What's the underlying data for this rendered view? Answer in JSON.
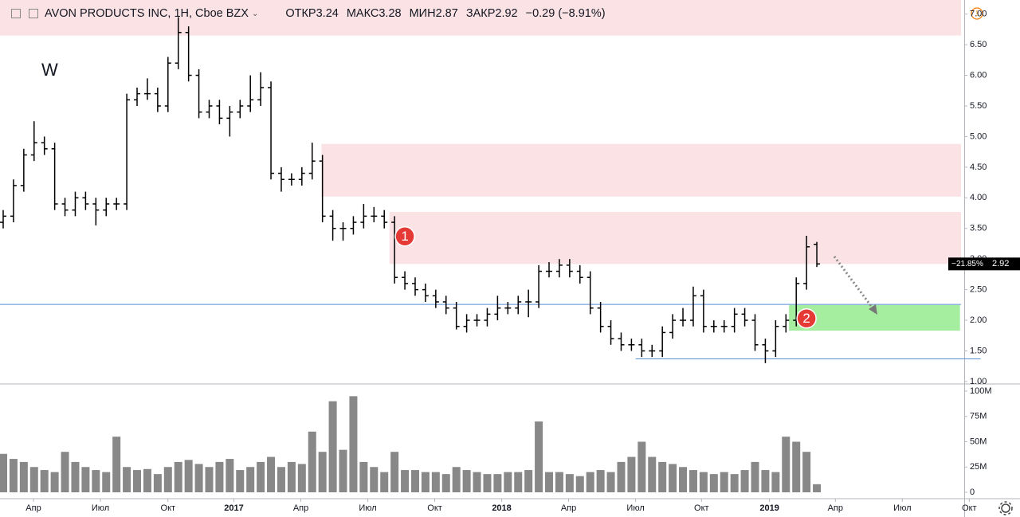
{
  "chart_data": {
    "type": "ohlc",
    "title": "AVON PRODUCTS INC, 1H, Cboe BZX",
    "header": {
      "open_label": "ОТКР",
      "open": 3.24,
      "high_label": "МАКС",
      "high": 3.28,
      "low_label": "МИН",
      "low": 2.87,
      "close_label": "ЗАКР",
      "close": 2.92,
      "change": "−0.29",
      "change_pct": "(−8.91%)"
    },
    "annotation": "W",
    "xlim": [
      0,
      93
    ],
    "xticks": [
      {
        "value": 2.94,
        "label": "Апр"
      },
      {
        "value": 9.44,
        "label": "Июл"
      },
      {
        "value": 16.0,
        "label": "Окт"
      },
      {
        "value": 22.4,
        "label": "2017"
      },
      {
        "value": 28.9,
        "label": "Апр"
      },
      {
        "value": 35.4,
        "label": "Июл"
      },
      {
        "value": 41.9,
        "label": "Окт"
      },
      {
        "value": 48.4,
        "label": "2018"
      },
      {
        "value": 54.9,
        "label": "Апр"
      },
      {
        "value": 61.4,
        "label": "Июл"
      },
      {
        "value": 67.8,
        "label": "Окт"
      },
      {
        "value": 74.4,
        "label": "2019"
      },
      {
        "value": 80.8,
        "label": "Апр"
      },
      {
        "value": 87.3,
        "label": "Июл"
      },
      {
        "value": 93.8,
        "label": "Окт"
      }
    ],
    "ylim": [
      0.96,
      7.23
    ],
    "yticks": [
      {
        "value": 1,
        "label": "1.00"
      },
      {
        "value": 1.5,
        "label": "1.50"
      },
      {
        "value": 2,
        "label": "2.00"
      },
      {
        "value": 2.5,
        "label": "2.50"
      },
      {
        "value": 3,
        "label": "3.00"
      },
      {
        "value": 3.5,
        "label": "3.50"
      },
      {
        "value": 4,
        "label": "4.00"
      },
      {
        "value": 4.5,
        "label": "4.50"
      },
      {
        "value": 5,
        "label": "5.00"
      },
      {
        "value": 5.5,
        "label": "5.50"
      },
      {
        "value": 6,
        "label": "6.00"
      },
      {
        "value": 6.5,
        "label": "6.50"
      },
      {
        "value": 7,
        "label": "7.00"
      }
    ],
    "color": "#000000",
    "open": [
      3.6,
      3.7,
      4.2,
      4.7,
      4.9,
      4.8,
      3.9,
      3.8,
      4.0,
      3.9,
      3.8,
      3.9,
      3.9,
      5.6,
      5.7,
      5.7,
      5.5,
      6.2,
      6.7,
      6.0,
      5.4,
      5.5,
      5.3,
      5.4,
      5.5,
      5.6,
      5.8,
      4.4,
      4.3,
      4.3,
      4.4,
      4.6,
      3.7,
      3.5,
      3.5,
      3.6,
      3.7,
      3.7,
      3.6,
      2.7,
      2.6,
      2.5,
      2.4,
      2.3,
      2.2,
      1.9,
      2.0,
      2.0,
      2.1,
      2.2,
      2.2,
      2.3,
      2.3,
      2.8,
      2.8,
      2.9,
      2.8,
      2.7,
      2.2,
      1.9,
      1.7,
      1.6,
      1.6,
      1.5,
      1.5,
      1.8,
      2.0,
      2.0,
      2.4,
      1.9,
      1.9,
      1.9,
      2.1,
      2.0,
      1.6,
      1.5,
      1.9,
      2.0,
      2.6,
      3.24
    ],
    "high": [
      3.8,
      4.3,
      4.8,
      5.25,
      5.0,
      4.9,
      4.0,
      4.1,
      4.1,
      4.0,
      4.0,
      4.0,
      5.7,
      5.8,
      5.95,
      5.8,
      6.3,
      6.95,
      6.8,
      6.1,
      5.6,
      5.6,
      5.5,
      5.6,
      6.0,
      6.05,
      5.9,
      4.5,
      4.4,
      4.5,
      4.9,
      4.7,
      3.8,
      3.6,
      3.7,
      3.9,
      3.85,
      3.8,
      3.7,
      2.8,
      2.7,
      2.6,
      2.5,
      2.4,
      2.3,
      2.1,
      2.1,
      2.2,
      2.4,
      2.3,
      2.4,
      2.5,
      2.9,
      2.95,
      3.0,
      3.0,
      2.9,
      2.8,
      2.3,
      2.0,
      1.8,
      1.7,
      1.7,
      1.6,
      1.9,
      2.1,
      2.2,
      2.55,
      2.5,
      2.0,
      2.0,
      2.2,
      2.2,
      2.1,
      1.7,
      2.0,
      2.1,
      2.7,
      3.38,
      3.28
    ],
    "low": [
      3.5,
      3.6,
      4.1,
      4.6,
      4.7,
      3.8,
      3.7,
      3.7,
      3.8,
      3.55,
      3.7,
      3.8,
      3.8,
      5.5,
      5.6,
      5.4,
      5.4,
      6.1,
      5.9,
      5.3,
      5.3,
      5.2,
      5.0,
      5.3,
      5.4,
      5.5,
      4.3,
      4.1,
      4.2,
      4.2,
      4.3,
      3.6,
      3.3,
      3.3,
      3.4,
      3.5,
      3.6,
      3.5,
      2.6,
      2.5,
      2.4,
      2.3,
      2.2,
      2.1,
      1.85,
      1.8,
      1.9,
      1.9,
      2.0,
      2.1,
      2.1,
      2.05,
      2.2,
      2.7,
      2.7,
      2.7,
      2.6,
      2.1,
      1.8,
      1.6,
      1.5,
      1.5,
      1.4,
      1.4,
      1.4,
      1.7,
      1.9,
      1.9,
      1.8,
      1.8,
      1.8,
      1.8,
      1.9,
      1.5,
      1.3,
      1.4,
      1.8,
      1.9,
      2.5,
      2.87
    ],
    "close": [
      3.7,
      4.2,
      4.7,
      4.9,
      4.8,
      3.9,
      3.8,
      4.0,
      3.9,
      3.8,
      3.9,
      3.9,
      5.6,
      5.7,
      5.7,
      5.5,
      6.2,
      6.7,
      6.0,
      5.4,
      5.5,
      5.3,
      5.4,
      5.5,
      5.6,
      5.8,
      4.4,
      4.3,
      4.3,
      4.4,
      4.6,
      3.7,
      3.5,
      3.5,
      3.6,
      3.7,
      3.7,
      3.6,
      2.7,
      2.6,
      2.5,
      2.4,
      2.3,
      2.2,
      1.9,
      2.0,
      2.0,
      2.1,
      2.2,
      2.2,
      2.3,
      2.3,
      2.8,
      2.8,
      2.9,
      2.8,
      2.7,
      2.2,
      1.9,
      1.7,
      1.6,
      1.6,
      1.5,
      1.5,
      1.8,
      2.0,
      2.0,
      2.4,
      1.9,
      1.9,
      1.9,
      2.1,
      2.0,
      1.6,
      1.5,
      1.9,
      2.0,
      2.6,
      3.2,
      2.92
    ],
    "volume": {
      "color": "#888888",
      "ylim": [
        0,
        100
      ],
      "yticks": [
        0,
        {
          "value": 25,
          "label": "25M"
        },
        {
          "value": 50,
          "label": "50M"
        },
        {
          "value": 75,
          "label": "75M"
        },
        {
          "value": 100,
          "label": "100M"
        }
      ],
      "values": [
        38,
        33,
        30,
        25,
        22,
        20,
        40,
        30,
        25,
        22,
        20,
        55,
        25,
        22,
        23,
        18,
        25,
        30,
        32,
        28,
        25,
        30,
        33,
        22,
        25,
        30,
        35,
        25,
        30,
        28,
        60,
        40,
        90,
        42,
        95,
        30,
        25,
        20,
        40,
        22,
        22,
        20,
        20,
        18,
        25,
        22,
        20,
        18,
        18,
        20,
        20,
        22,
        70,
        20,
        20,
        18,
        16,
        20,
        22,
        20,
        30,
        35,
        50,
        35,
        30,
        28,
        25,
        22,
        20,
        18,
        20,
        18,
        22,
        30,
        22,
        20,
        55,
        50,
        40,
        8
      ]
    },
    "zones": [
      {
        "y": [
          6.65,
          7.23
        ],
        "x": [
          -0.31,
          93
        ],
        "color": "#fbe3e5"
      },
      {
        "y": [
          4.02,
          4.88
        ],
        "x": [
          30.9,
          93
        ],
        "color": "#fbe3e5"
      },
      {
        "y": [
          2.92,
          3.77
        ],
        "x": [
          37.5,
          93
        ],
        "color": "#fbe3e5"
      },
      {
        "y": [
          1.83,
          2.25
        ],
        "x": [
          76.3,
          92.9
        ],
        "color": "#a5eea0"
      }
    ],
    "levels": [
      {
        "value": 2.26,
        "x": [
          -0.31,
          93
        ],
        "color": "#5b8fd6"
      },
      {
        "value": 1.37,
        "x": [
          61.4,
          94.9
        ],
        "color": "#5b8fd6"
      }
    ],
    "markers": [
      {
        "label": 1,
        "x": 39,
        "y": 3.37,
        "color": "#e53935"
      },
      {
        "label": 2,
        "x": 78,
        "y": 2.03,
        "color": "#e53935"
      }
    ],
    "last_price": {
      "change": "−21.85%",
      "value": 2.92
    }
  }
}
